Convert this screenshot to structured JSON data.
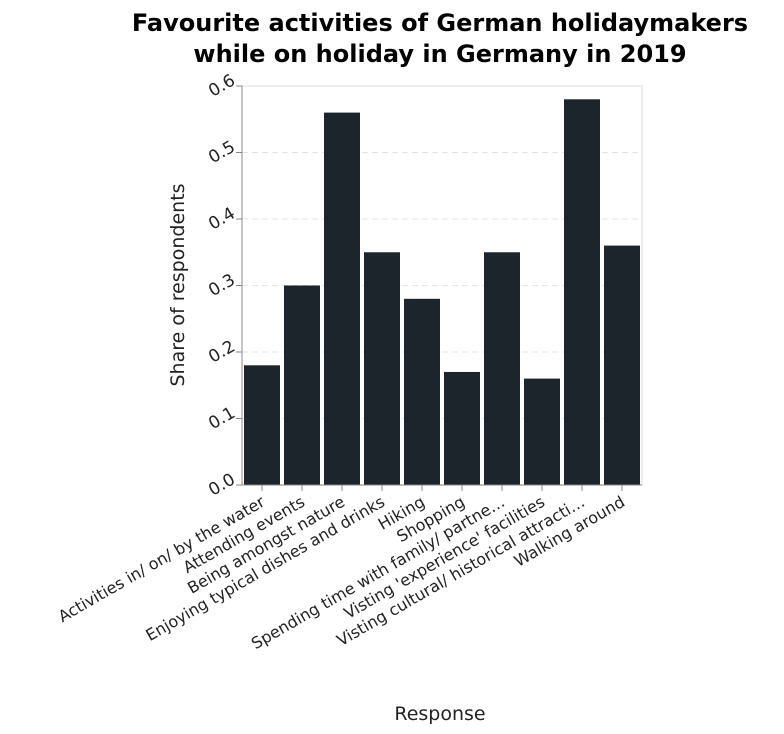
{
  "chart_data": {
    "type": "bar",
    "title_lines": [
      "Favourite activities of German holidaymakers",
      "while on holiday in Germany in 2019"
    ],
    "xlabel": "Response",
    "ylabel": "Share of respondents",
    "ylim": [
      0,
      0.6
    ],
    "yticks": [
      "0.0",
      "0.1",
      "0.2",
      "0.3",
      "0.4",
      "0.5",
      "0.6"
    ],
    "grid": true,
    "bar_color": "#1c252c",
    "categories": [
      "Activities in/ on/ by the water",
      "Attending events",
      "Being amongst nature",
      "Enjoying typical dishes and drinks",
      "Hiking",
      "Shopping",
      "Spending time with family/ partne…",
      "Visting 'experience' facilities",
      "Visting cultural/ historical attracti…",
      "Walking around"
    ],
    "values": [
      0.18,
      0.3,
      0.56,
      0.35,
      0.28,
      0.17,
      0.35,
      0.16,
      0.58,
      0.36
    ]
  }
}
